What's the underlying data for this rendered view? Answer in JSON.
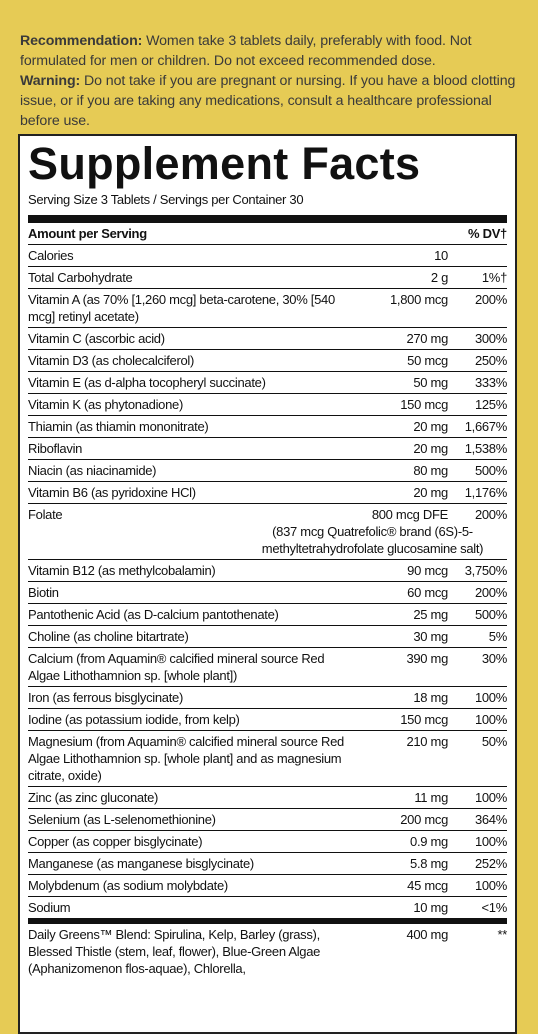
{
  "recommendation": {
    "label": "Recommendation:",
    "text": "Women take 3 tablets daily, preferably with food. Not formulated for men or children. Do not exceed recommended dose."
  },
  "warning": {
    "label": "Warning:",
    "text": "Do not take if you are pregnant or nursing. If you have a blood clotting issue, or if you are taking any medications, consult a healthcare professional before use."
  },
  "facts": {
    "title": "Supplement Facts",
    "serving": "Serving Size 3 Tablets / Servings per Container 30",
    "header": {
      "amount": "Amount per Serving",
      "dv": "% DV†"
    },
    "rows": [
      {
        "name": "Calories",
        "amount": "10",
        "dv": ""
      },
      {
        "name": "Total Carbohydrate",
        "amount": "2 g",
        "dv": "1%†"
      },
      {
        "name": "Vitamin A (as 70% [1,260 mcg] beta-carotene, 30% [540 mcg] retinyl acetate)",
        "amount": "1,800 mcg",
        "dv": "200%"
      },
      {
        "name": "Vitamin C (ascorbic acid)",
        "amount": "270 mg",
        "dv": "300%"
      },
      {
        "name": "Vitamin D3 (as cholecalciferol)",
        "amount": "50 mcg",
        "dv": "250%"
      },
      {
        "name": "Vitamin E (as d-alpha tocopheryl succinate)",
        "amount": "50 mg",
        "dv": "333%"
      },
      {
        "name": "Vitamin K (as phytonadione)",
        "amount": "150 mcg",
        "dv": "125%"
      },
      {
        "name": "Thiamin (as thiamin mononitrate)",
        "amount": "20 mg",
        "dv": "1,667%"
      },
      {
        "name": "Riboflavin",
        "amount": "20 mg",
        "dv": "1,538%"
      },
      {
        "name": "Niacin (as niacinamide)",
        "amount": "80 mg",
        "dv": "500%"
      },
      {
        "name": "Vitamin B6 (as pyridoxine HCl)",
        "amount": "20 mg",
        "dv": "1,176%"
      },
      {
        "name": "Folate",
        "amount": "800 mcg DFE",
        "dv": "200%",
        "note": "(837 mcg Quatrefolic® brand (6S)-5-methyltetrahydrofolate glucosamine salt)"
      },
      {
        "name": "Vitamin B12 (as methylcobalamin)",
        "amount": "90 mcg",
        "dv": "3,750%"
      },
      {
        "name": "Biotin",
        "amount": "60 mcg",
        "dv": "200%"
      },
      {
        "name": "Pantothenic Acid (as D-calcium pantothenate)",
        "amount": "25 mg",
        "dv": "500%"
      },
      {
        "name": "Choline (as choline bitartrate)",
        "amount": "30 mg",
        "dv": "5%"
      },
      {
        "name": "Calcium (from Aquamin® calcified mineral source Red Algae Lithothamnion sp. [whole plant])",
        "amount": "390 mg",
        "dv": "30%"
      },
      {
        "name": "Iron (as ferrous bisglycinate)",
        "amount": "18 mg",
        "dv": "100%"
      },
      {
        "name": "Iodine (as potassium iodide, from kelp)",
        "amount": "150 mcg",
        "dv": "100%"
      },
      {
        "name": "Magnesium (from Aquamin® calcified mineral source Red Algae Lithothamnion sp. [whole plant] and as magnesium citrate, oxide)",
        "amount": "210 mg",
        "dv": "50%"
      },
      {
        "name": "Zinc (as zinc gluconate)",
        "amount": "11 mg",
        "dv": "100%"
      },
      {
        "name": "Selenium (as L-selenomethionine)",
        "amount": "200 mcg",
        "dv": "364%"
      },
      {
        "name": "Copper (as copper bisglycinate)",
        "amount": "0.9 mg",
        "dv": "100%"
      },
      {
        "name": "Manganese (as manganese bisglycinate)",
        "amount": "5.8 mg",
        "dv": "252%"
      },
      {
        "name": "Molybdenum (as sodium molybdate)",
        "amount": "45 mcg",
        "dv": "100%"
      },
      {
        "name": "Sodium",
        "amount": "10 mg",
        "dv": "<1%"
      }
    ],
    "blend": {
      "name": "Daily Greens™ Blend: Spirulina, Kelp, Barley (grass), Blessed Thistle (stem, leaf, flower), Blue-Green Algae (Aphanizomenon flos-aquae), Chlorella,",
      "amount": "400 mg",
      "dv": "**"
    }
  }
}
